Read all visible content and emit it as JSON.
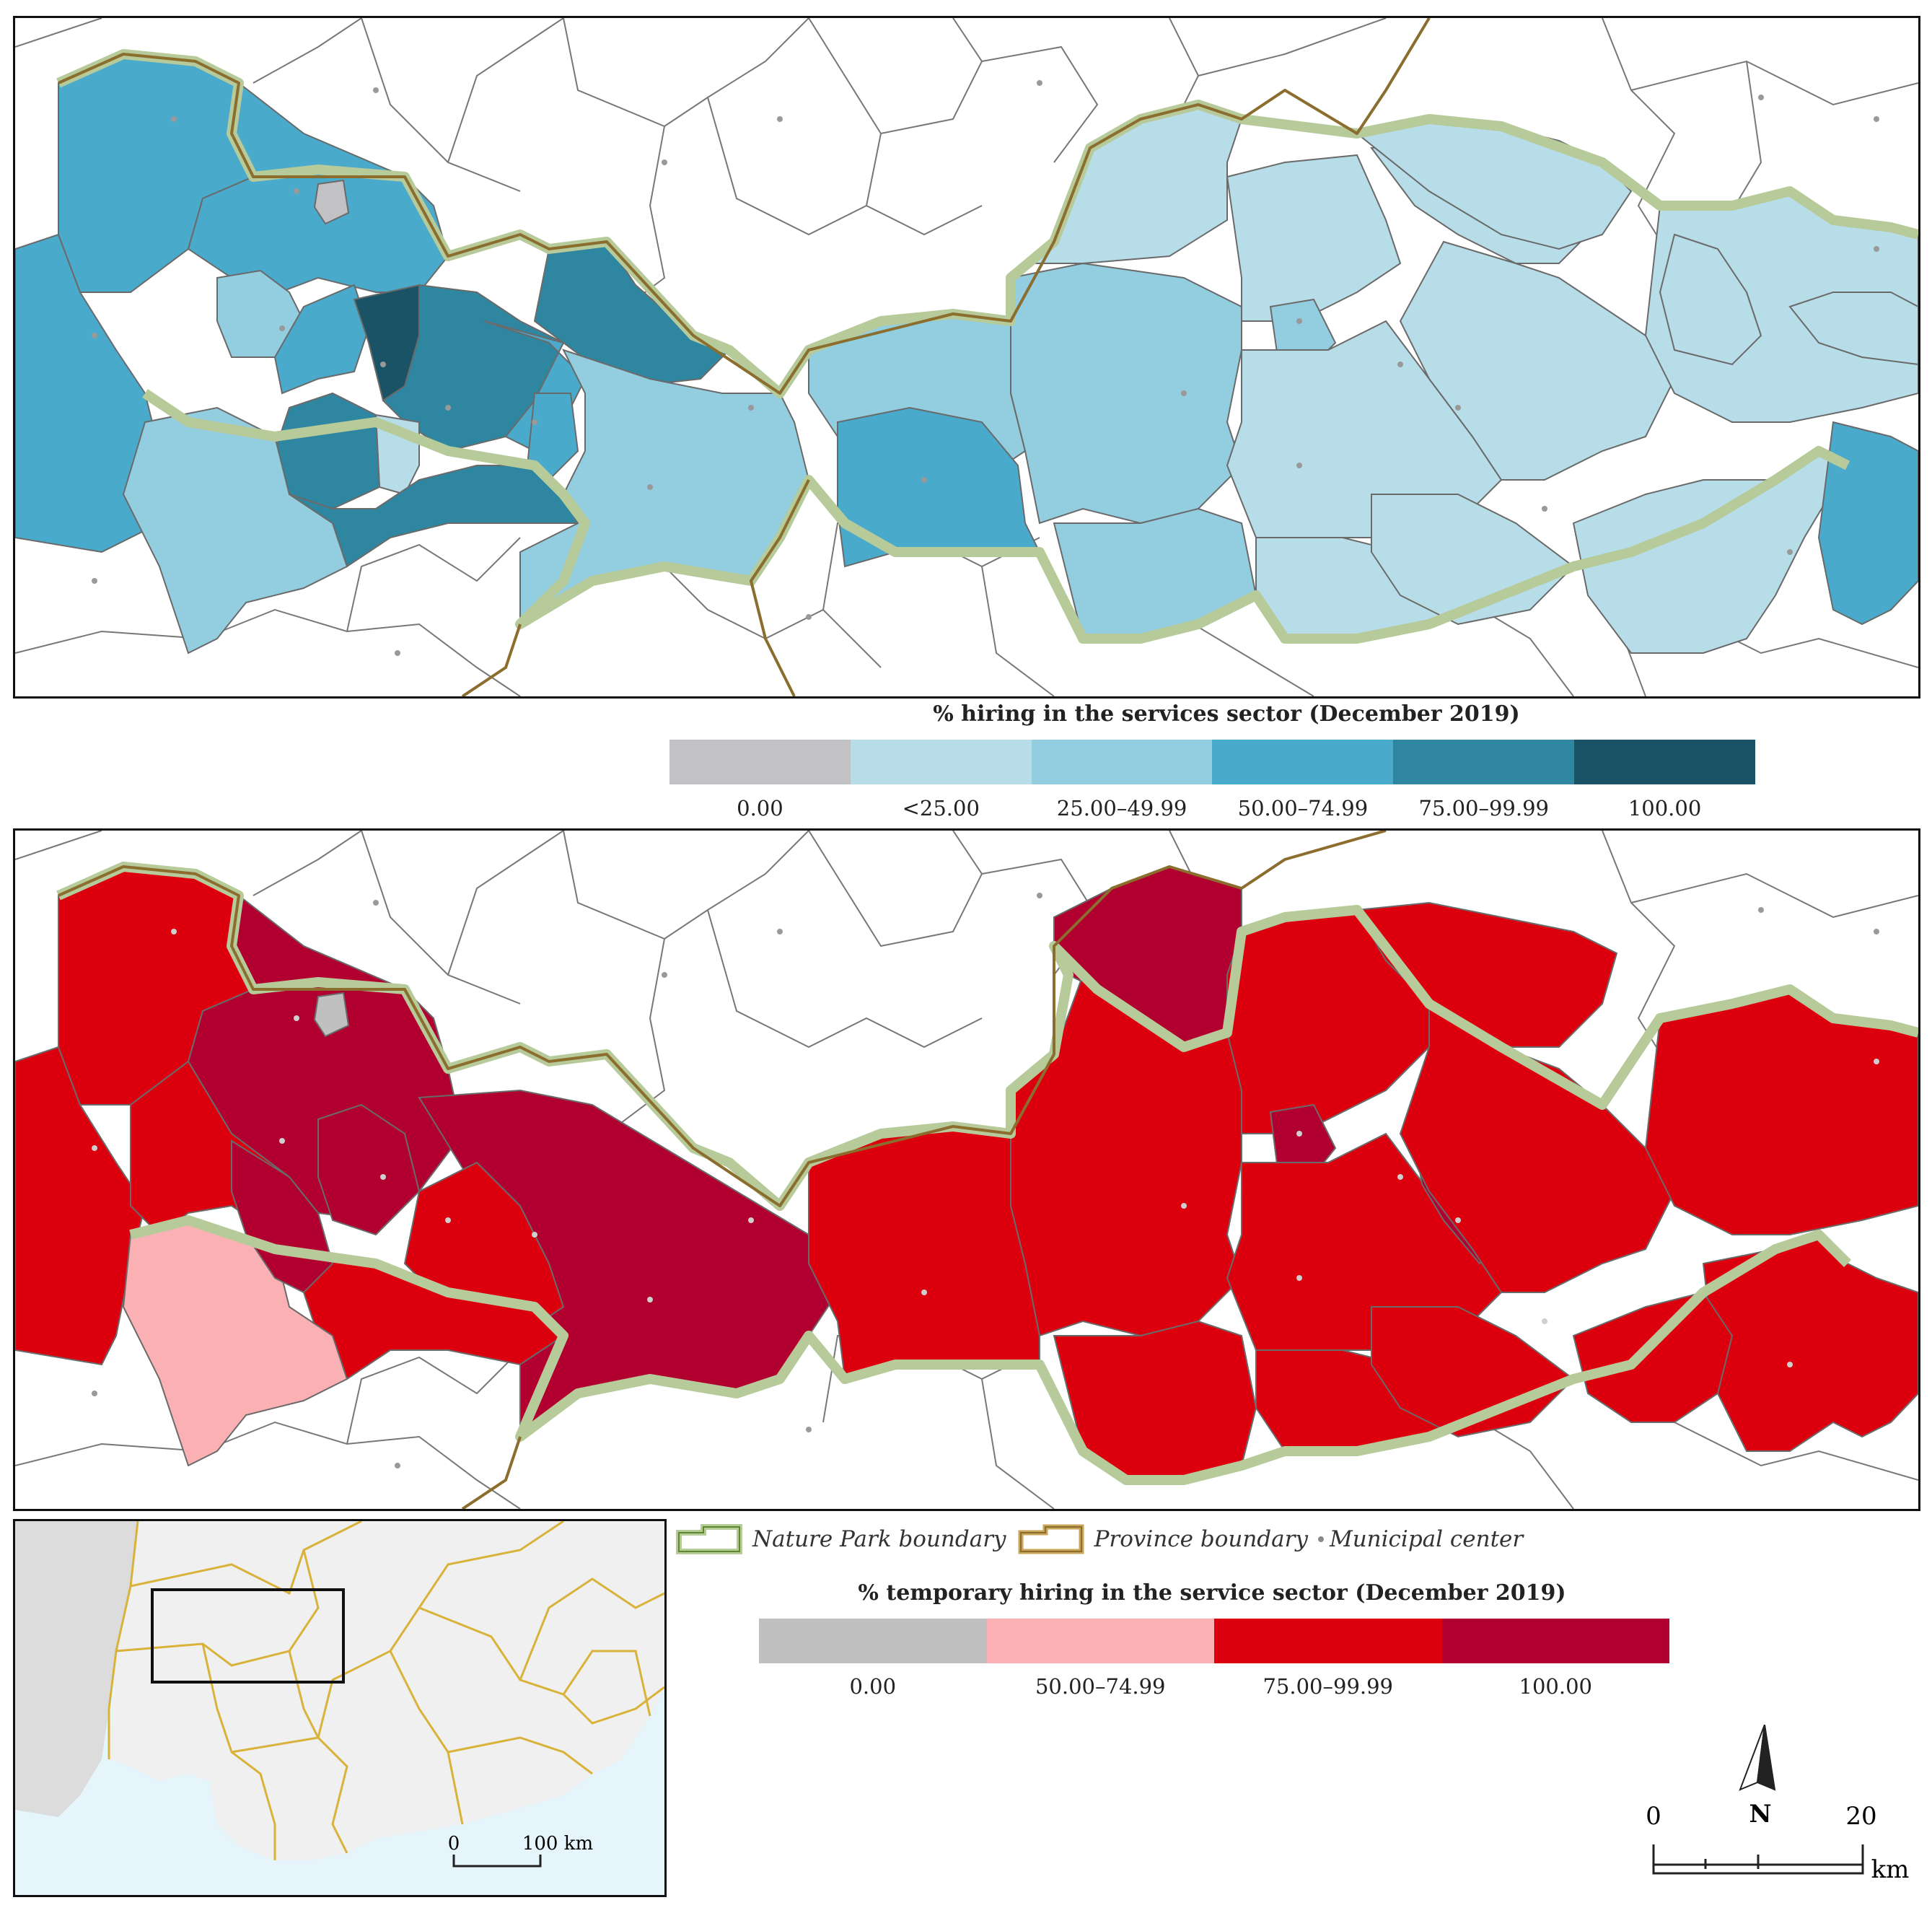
{
  "map_top": {
    "legend": {
      "title": "% hiring in the services sector (December 2019)",
      "classes": [
        {
          "label": "0.00",
          "color": "#c2c2c4"
        },
        {
          "label": "<25.00",
          "color": "#b7dde9"
        },
        {
          "label": "25.00–49.99",
          "color": "#93cde0"
        },
        {
          "label": "50.00–74.99",
          "color": "#4aaacb"
        },
        {
          "label": "75.00–99.99",
          "color": "#2f86a0"
        },
        {
          "label": "100.00",
          "color": "#1b5366"
        }
      ]
    }
  },
  "map_bottom": {
    "legend": {
      "title": "% temporary hiring in the service sector (December 2019)",
      "classes": [
        {
          "label": "0.00",
          "color": "#c0c0c0"
        },
        {
          "label": "50.00–74.99",
          "color": "#fbb1b3"
        },
        {
          "label": "75.00–99.99",
          "color": "#dc000f"
        },
        {
          "label": "100.00",
          "color": "#b10030"
        }
      ]
    }
  },
  "key": {
    "nature_park": "Nature Park boundary",
    "province": "Province boundary",
    "municipal_center": "Municipal center"
  },
  "colors": {
    "nature_park_boundary": "#b7ca9a",
    "nature_park_edge": "#5b8a2c",
    "province_boundary": "#9a7b3c",
    "municipal_boundary": "#6b6b6b",
    "inset_land": "#f0f0f0",
    "inset_sea": "#e6f4fb",
    "inset_portugal": "#dcdcdc",
    "inset_borders": "#d9b23a"
  },
  "inset": {
    "scale_zero": "0",
    "scale_label": "100 km"
  },
  "scale": {
    "zero": "0",
    "max": "20",
    "unit": "km",
    "north": "N"
  }
}
